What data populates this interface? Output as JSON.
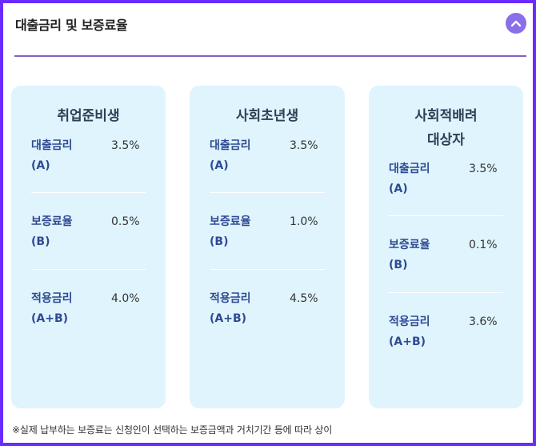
{
  "section": {
    "title": "대출금리 및 보증료율",
    "toggle_icon": "chevron-up-icon",
    "accent_color": "#6b2bff",
    "toggle_color": "#8a6fe8"
  },
  "cards": [
    {
      "title_line1": "취업준비생",
      "title_line2": "",
      "rows": [
        {
          "label_line1": "대출금리",
          "label_line2": "(A)",
          "value": "3.5%"
        },
        {
          "label_line1": "보증료율",
          "label_line2": "(B)",
          "value": "0.5%"
        },
        {
          "label_line1": "적용금리",
          "label_line2": "(A+B)",
          "value": "4.0%"
        }
      ]
    },
    {
      "title_line1": "사회초년생",
      "title_line2": "",
      "rows": [
        {
          "label_line1": "대출금리",
          "label_line2": "(A)",
          "value": "3.5%"
        },
        {
          "label_line1": "보증료율",
          "label_line2": "(B)",
          "value": "1.0%"
        },
        {
          "label_line1": "적용금리",
          "label_line2": "(A+B)",
          "value": "4.5%"
        }
      ]
    },
    {
      "title_line1": "사회적배려",
      "title_line2": "대상자",
      "rows": [
        {
          "label_line1": "대출금리",
          "label_line2": "(A)",
          "value": "3.5%"
        },
        {
          "label_line1": "보증료율",
          "label_line2": "(B)",
          "value": "0.1%"
        },
        {
          "label_line1": "적용금리",
          "label_line2": "(A+B)",
          "value": "3.6%"
        }
      ]
    }
  ],
  "footnote": "※실제 납부하는 보증료는 신청인이 선택하는 보증금액과 거치기간 등에 따라 상이"
}
